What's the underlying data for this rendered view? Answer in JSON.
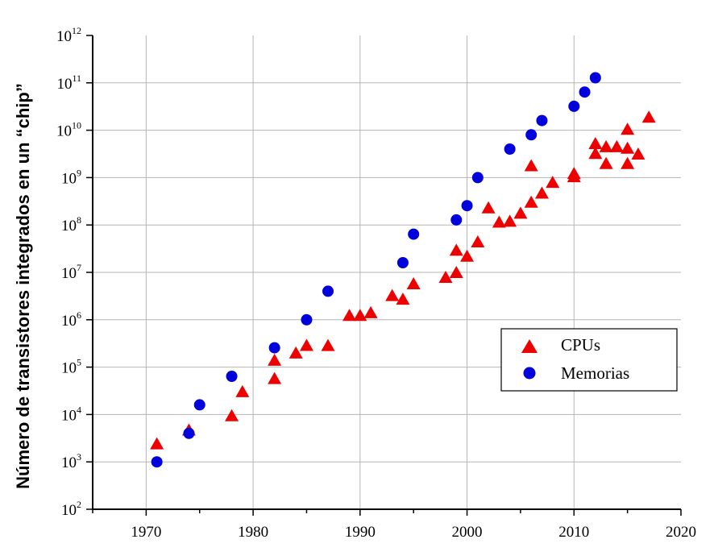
{
  "chart_data": {
    "type": "scatter",
    "title": "",
    "xlabel": "",
    "ylabel": "Número de transistores integrados en un “chip”",
    "xlim": [
      1965,
      2020
    ],
    "ylim_log10": [
      2,
      12
    ],
    "yscale": "log",
    "grid": true,
    "legend_position": "right",
    "x_ticks": [
      1970,
      1980,
      1990,
      2000,
      2010,
      2020
    ],
    "y_tick_labels": [
      {
        "base": "10",
        "exp": "2",
        "log": 2
      },
      {
        "base": "10",
        "exp": "3",
        "log": 3
      },
      {
        "base": "10",
        "exp": "4",
        "log": 4
      },
      {
        "base": "10",
        "exp": "5",
        "log": 5
      },
      {
        "base": "10",
        "exp": "6",
        "log": 6
      },
      {
        "base": "10",
        "exp": "7",
        "log": 7
      },
      {
        "base": "10",
        "exp": "8",
        "log": 8
      },
      {
        "base": "10",
        "exp": "9",
        "log": 9
      },
      {
        "base": "10",
        "exp": "10",
        "log": 10
      },
      {
        "base": "10",
        "exp": "11",
        "log": 11
      },
      {
        "base": "10",
        "exp": "12",
        "log": 12
      }
    ],
    "series": [
      {
        "name": "CPUs",
        "marker": "triangle",
        "color": "#ee0000",
        "points": [
          [
            1971,
            2300
          ],
          [
            1974,
            4500
          ],
          [
            1978,
            9000
          ],
          [
            1979,
            29000
          ],
          [
            1982,
            55000
          ],
          [
            1982,
            134000
          ],
          [
            1984,
            190000
          ],
          [
            1985,
            275000
          ],
          [
            1987,
            273000
          ],
          [
            1989,
            1180000
          ],
          [
            1990,
            1180000
          ],
          [
            1991,
            1350000
          ],
          [
            1993,
            3100000
          ],
          [
            1994,
            2600000
          ],
          [
            1995,
            5500000
          ],
          [
            1998,
            7500000
          ],
          [
            1999,
            9500000
          ],
          [
            1999,
            28000000
          ],
          [
            2000,
            21000000
          ],
          [
            2001,
            42000000
          ],
          [
            2002,
            220000000
          ],
          [
            2003,
            110000000
          ],
          [
            2004,
            115000000
          ],
          [
            2005,
            170000000
          ],
          [
            2006,
            290000000
          ],
          [
            2006,
            1700000000
          ],
          [
            2007,
            450000000
          ],
          [
            2008,
            760000000
          ],
          [
            2010,
            1000000000
          ],
          [
            2010,
            1170000000
          ],
          [
            2012,
            3100000000
          ],
          [
            2012,
            5000000000
          ],
          [
            2013,
            1900000000
          ],
          [
            2013,
            4300000000
          ],
          [
            2014,
            4300000000
          ],
          [
            2015,
            1900000000
          ],
          [
            2015,
            4000000000
          ],
          [
            2015,
            10000000000
          ],
          [
            2016,
            3000000000
          ],
          [
            2017,
            18000000000
          ]
        ]
      },
      {
        "name": "Memorias",
        "marker": "circle",
        "color": "#0000dd",
        "points": [
          [
            1971,
            1000
          ],
          [
            1974,
            4000
          ],
          [
            1975,
            16000
          ],
          [
            1978,
            64000
          ],
          [
            1982,
            256000
          ],
          [
            1985,
            1000000
          ],
          [
            1987,
            4000000
          ],
          [
            1994,
            16000000
          ],
          [
            1995,
            64000000
          ],
          [
            1999,
            128000000
          ],
          [
            2000,
            256000000
          ],
          [
            2001,
            1000000000
          ],
          [
            2004,
            4000000000
          ],
          [
            2006,
            8000000000
          ],
          [
            2007,
            16000000000
          ],
          [
            2010,
            32000000000
          ],
          [
            2011,
            64000000000
          ],
          [
            2012,
            128000000000
          ]
        ]
      }
    ]
  }
}
